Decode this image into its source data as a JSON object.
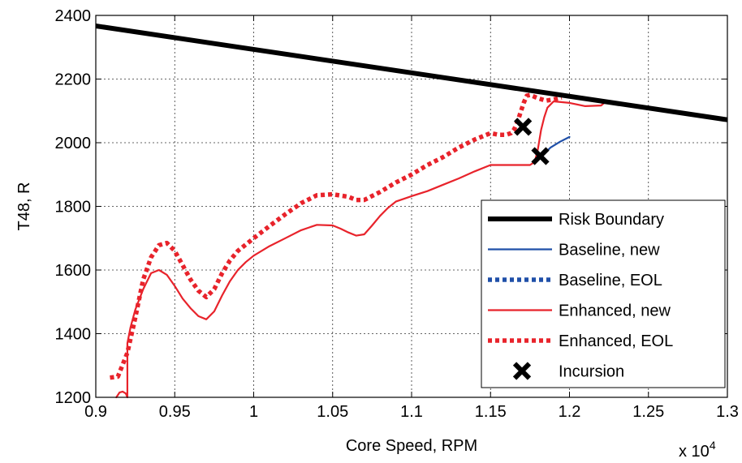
{
  "chart_data": {
    "type": "line",
    "xlabel": "Core Speed, RPM",
    "ylabel": "T48, R",
    "x_multiplier_prefix": "x 10",
    "x_multiplier_exp": "4",
    "xlim": [
      0.9,
      1.3
    ],
    "ylim": [
      1200,
      2400
    ],
    "xticks": [
      "0.9",
      "0.95",
      "1",
      "1.05",
      "1.1",
      "1.15",
      "1.2",
      "1.25",
      "1.3"
    ],
    "yticks": [
      "1200",
      "1400",
      "1600",
      "1800",
      "2000",
      "2200",
      "2400"
    ],
    "grid": true,
    "legend_position": "lower-right",
    "series": [
      {
        "name": "Risk Boundary",
        "color": "#000000",
        "style": "solid-thick",
        "x": [
          0.9,
          1.3
        ],
        "y": [
          2367,
          2072
        ]
      },
      {
        "name": "Baseline, new",
        "color": "#1f4fa8",
        "style": "solid",
        "x": [
          1.182,
          1.188,
          1.194,
          1.2
        ],
        "y": [
          1955,
          1985,
          2003,
          2018
        ]
      },
      {
        "name": "Baseline, EOL",
        "color": "#1f4fa8",
        "style": "dotted",
        "x": [],
        "y": []
      },
      {
        "name": "Enhanced, new",
        "color": "#e8232b",
        "style": "solid",
        "x": [
          0.913,
          0.915,
          0.917,
          0.919,
          0.92,
          0.92,
          0.922,
          0.925,
          0.93,
          0.935,
          0.94,
          0.945,
          0.95,
          0.955,
          0.96,
          0.965,
          0.97,
          0.975,
          0.98,
          0.985,
          0.99,
          0.995,
          1.0,
          1.01,
          1.02,
          1.03,
          1.04,
          1.05,
          1.055,
          1.06,
          1.065,
          1.07,
          1.075,
          1.08,
          1.085,
          1.09,
          1.1,
          1.11,
          1.12,
          1.13,
          1.14,
          1.15,
          1.16,
          1.17,
          1.175,
          1.178,
          1.18,
          1.182,
          1.184,
          1.186,
          1.19,
          1.2,
          1.21,
          1.22,
          1.222
        ],
        "y": [
          1200,
          1215,
          1218,
          1212,
          1200,
          1370,
          1420,
          1475,
          1540,
          1590,
          1600,
          1585,
          1550,
          1510,
          1480,
          1455,
          1445,
          1470,
          1520,
          1565,
          1600,
          1625,
          1645,
          1675,
          1700,
          1725,
          1742,
          1740,
          1730,
          1718,
          1708,
          1712,
          1740,
          1770,
          1795,
          1815,
          1832,
          1848,
          1868,
          1888,
          1910,
          1930,
          1930,
          1930,
          1930,
          1940,
          1980,
          2040,
          2080,
          2110,
          2130,
          2125,
          2115,
          2117,
          2125
        ]
      },
      {
        "name": "Enhanced, EOL",
        "color": "#e8232b",
        "style": "dotted",
        "x": [
          0.909,
          0.914,
          0.916,
          0.92,
          0.925,
          0.93,
          0.935,
          0.94,
          0.945,
          0.95,
          0.955,
          0.96,
          0.965,
          0.97,
          0.975,
          0.98,
          0.985,
          0.99,
          0.995,
          1.0,
          1.01,
          1.02,
          1.03,
          1.04,
          1.05,
          1.06,
          1.065,
          1.07,
          1.08,
          1.09,
          1.1,
          1.11,
          1.12,
          1.13,
          1.14,
          1.15,
          1.155,
          1.16,
          1.163,
          1.165,
          1.167,
          1.169,
          1.171,
          1.173,
          1.175,
          1.18,
          1.185,
          1.19,
          1.195
        ],
        "y": [
          1262,
          1265,
          1290,
          1340,
          1450,
          1570,
          1640,
          1678,
          1685,
          1660,
          1615,
          1570,
          1535,
          1515,
          1540,
          1590,
          1630,
          1660,
          1680,
          1700,
          1738,
          1775,
          1810,
          1835,
          1838,
          1830,
          1820,
          1820,
          1845,
          1875,
          1900,
          1930,
          1955,
          1985,
          2010,
          2030,
          2025,
          2025,
          2030,
          2042,
          2065,
          2095,
          2125,
          2148,
          2150,
          2140,
          2132,
          2136,
          2142
        ]
      },
      {
        "name": "Incursion",
        "color": "#000000",
        "style": "marker-x",
        "x": [
          1.1705,
          1.1815
        ],
        "y": [
          2050,
          1958
        ]
      }
    ]
  }
}
